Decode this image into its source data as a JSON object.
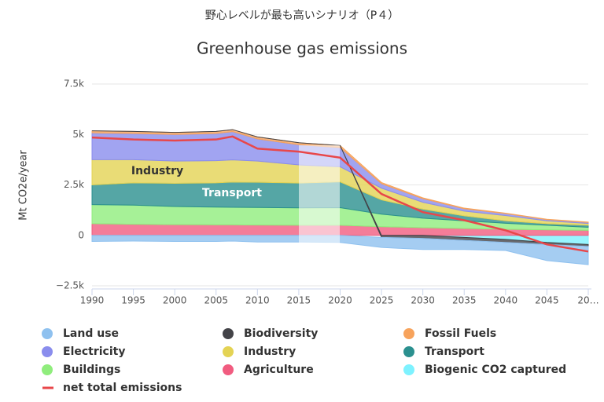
{
  "chart_data": {
    "type": "area",
    "supertitle": "野心レベルが最も高いシナリオ（P４）",
    "title": "Greenhouse gas emissions",
    "y_label": "Mt CO2e/year",
    "annotations": [
      "Industry",
      "Transport"
    ],
    "stacked": true,
    "grid": true,
    "legend": "bottom",
    "x": [
      1990,
      1995,
      2000,
      2005,
      2007,
      2010,
      2015,
      2020,
      2025,
      2030,
      2035,
      2040,
      2045,
      2050
    ],
    "xlim": [
      1990,
      2050
    ],
    "xticks": [
      1990,
      1995,
      2000,
      2005,
      2010,
      2015,
      2020,
      2025,
      2030,
      2035,
      2040,
      2045,
      {
        "value": 2050,
        "label": "20…"
      }
    ],
    "ylim": [
      -2500,
      7500
    ],
    "yticks": [
      {
        "value": -2500,
        "label": "−2.5k"
      },
      0,
      {
        "value": 2500,
        "label": "2.5k"
      },
      {
        "value": 5000,
        "label": "5k"
      },
      {
        "value": 7500,
        "label": "7.5k"
      }
    ],
    "series": [
      {
        "name": "Land use",
        "color": "#8fc1ef",
        "values": [
          -300,
          -280,
          -300,
          -300,
          -280,
          -330,
          -330,
          -350,
          -500,
          -550,
          -450,
          -400,
          -800,
          -900
        ]
      },
      {
        "name": "Biodiversity",
        "color": "#434348",
        "values": [
          0,
          0,
          0,
          0,
          0,
          0,
          0,
          0,
          -100,
          -150,
          -150,
          -150,
          -100,
          -100
        ]
      },
      {
        "name": "Fossil Fuels",
        "color": "#f7a35c",
        "values": [
          100,
          100,
          100,
          100,
          100,
          100,
          100,
          100,
          60,
          40,
          30,
          20,
          20,
          20
        ]
      },
      {
        "name": "Electricity",
        "color": "#8a8ded",
        "values": [
          1330,
          1300,
          1320,
          1350,
          1400,
          1100,
          1000,
          950,
          220,
          180,
          120,
          100,
          60,
          50
        ]
      },
      {
        "name": "Industry",
        "color": "#e4d354",
        "values": [
          1250,
          1150,
          1100,
          1100,
          1100,
          1050,
          900,
          750,
          580,
          340,
          230,
          260,
          140,
          90
        ]
      },
      {
        "name": "Transport",
        "color": "#2b908f",
        "values": [
          980,
          1100,
          1150,
          1200,
          1250,
          1250,
          1230,
          1280,
          710,
          450,
          250,
          120,
          80,
          100
        ]
      },
      {
        "name": "Buildings",
        "color": "#90ed7d",
        "values": [
          940,
          950,
          900,
          880,
          870,
          870,
          860,
          870,
          620,
          470,
          380,
          300,
          230,
          150
        ]
      },
      {
        "name": "Agriculture",
        "color": "#f15c80",
        "values": [
          580,
          550,
          530,
          520,
          520,
          510,
          500,
          500,
          430,
          380,
          340,
          300,
          270,
          250
        ]
      },
      {
        "name": "Biogenic CO2 captured",
        "color": "#7ef2ff",
        "values": [
          0,
          0,
          0,
          0,
          0,
          0,
          0,
          0,
          0,
          0,
          -100,
          -200,
          -350,
          -450
        ]
      },
      {
        "name": "net total emissions",
        "color": "#e8474a",
        "type": "line",
        "values": [
          4850,
          4750,
          4700,
          4750,
          4900,
          4300,
          4150,
          3850,
          2050,
          1150,
          750,
          250,
          -450,
          -800
        ]
      }
    ]
  }
}
